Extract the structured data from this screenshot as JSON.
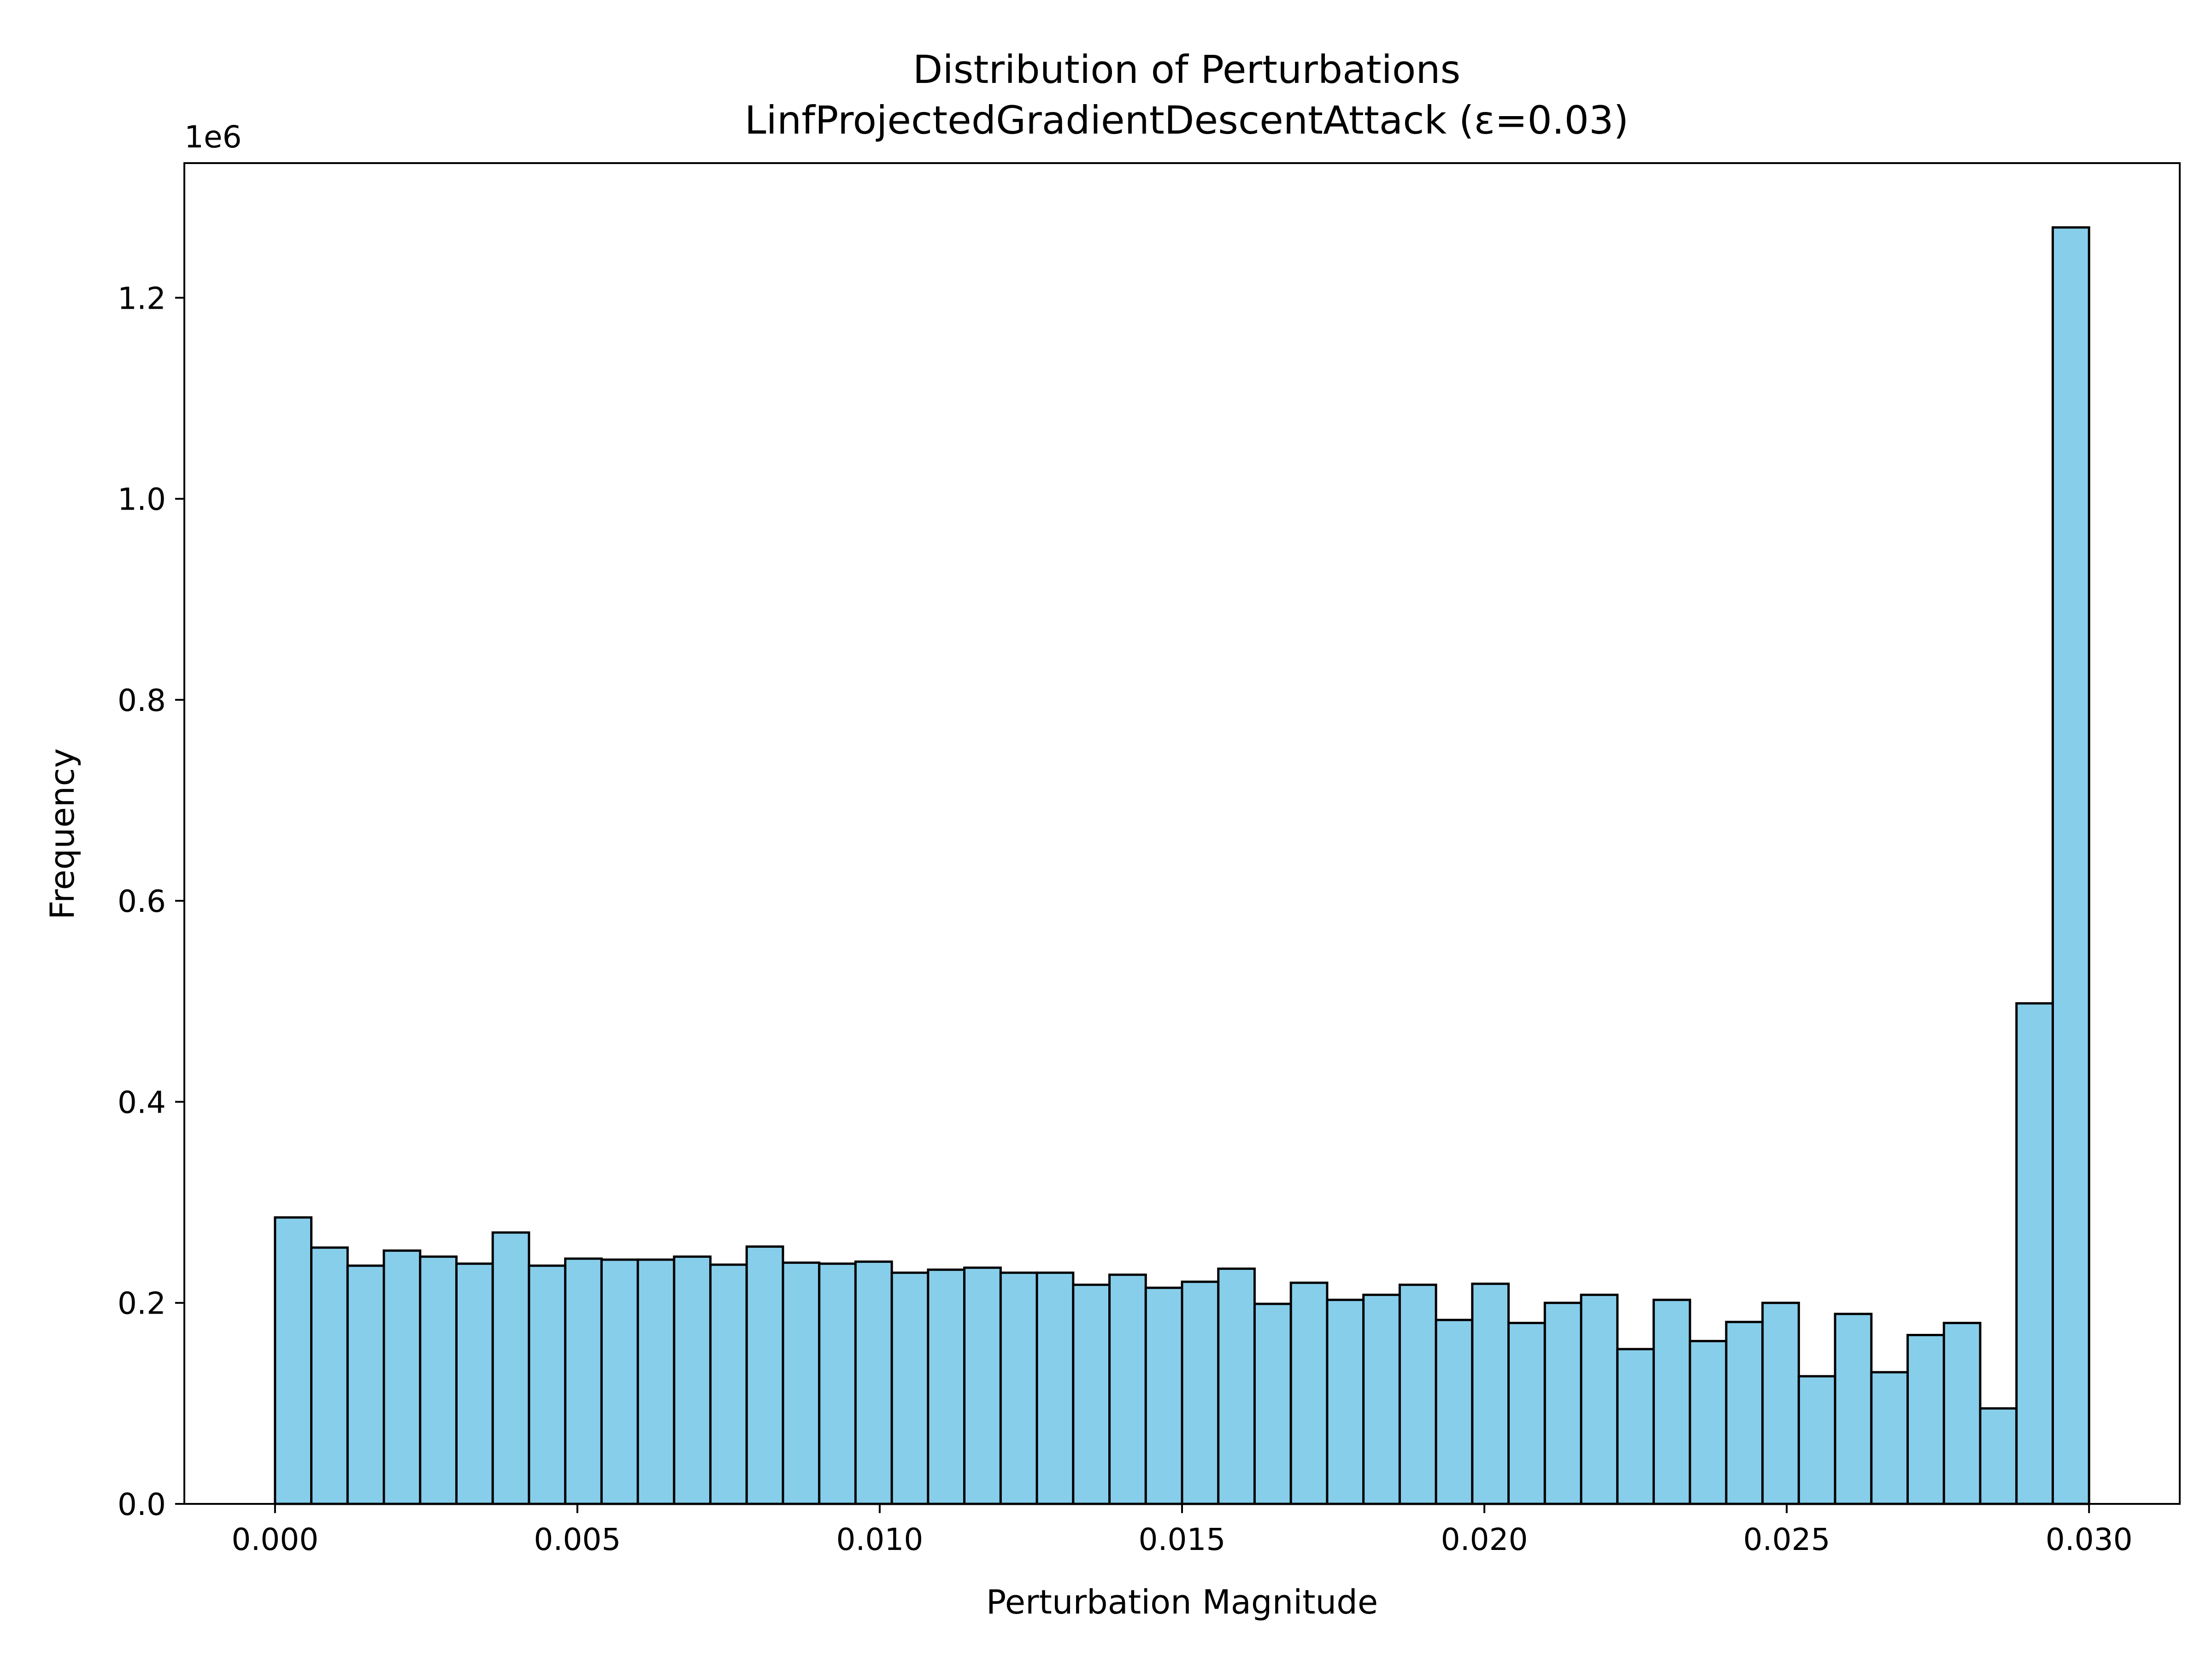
{
  "chart_data": {
    "type": "bar",
    "title": "Distribution of Perturbations",
    "subtitle": "LinfProjectedGradientDescentAttack (ε=0.03)",
    "xlabel": "Perturbation Magnitude",
    "ylabel": "Frequency",
    "y_offset_label": "1e6",
    "xlim": [
      -0.0015,
      0.0315
    ],
    "ylim": [
      0,
      1.334
    ],
    "x_ticks": [
      0.0,
      0.005,
      0.01,
      0.015,
      0.02,
      0.025,
      0.03
    ],
    "x_tick_labels": [
      "0.000",
      "0.005",
      "0.010",
      "0.015",
      "0.020",
      "0.025",
      "0.030"
    ],
    "y_ticks": [
      0.0,
      0.2,
      0.4,
      0.6,
      0.8,
      1.0,
      1.2
    ],
    "y_tick_labels": [
      "0.0",
      "0.2",
      "0.4",
      "0.6",
      "0.8",
      "1.0",
      "1.2"
    ],
    "grid": false,
    "bin_range": [
      0.0,
      0.03
    ],
    "bar_fill": "#87ceeb",
    "bar_edge": "#000000",
    "values": [
      0.285,
      0.255,
      0.237,
      0.252,
      0.246,
      0.239,
      0.27,
      0.237,
      0.244,
      0.243,
      0.243,
      0.246,
      0.238,
      0.256,
      0.24,
      0.239,
      0.241,
      0.23,
      0.233,
      0.235,
      0.23,
      0.23,
      0.218,
      0.228,
      0.215,
      0.221,
      0.234,
      0.199,
      0.22,
      0.203,
      0.208,
      0.218,
      0.183,
      0.219,
      0.18,
      0.2,
      0.208,
      0.154,
      0.203,
      0.162,
      0.181,
      0.2,
      0.127,
      0.189,
      0.131,
      0.168,
      0.18,
      0.095,
      0.498,
      1.27
    ]
  }
}
